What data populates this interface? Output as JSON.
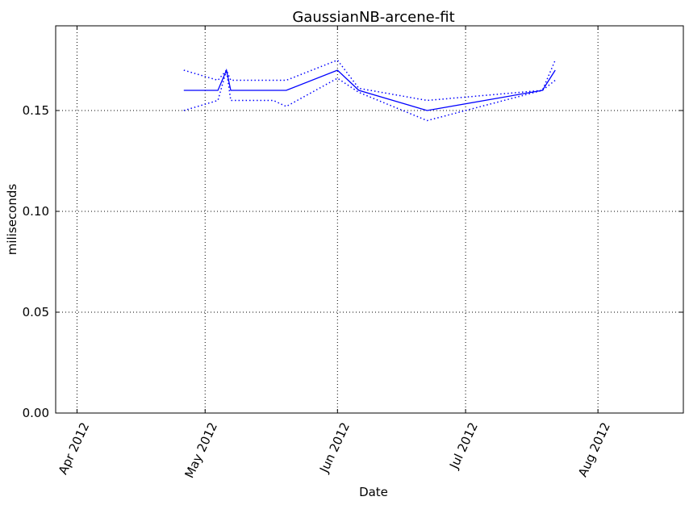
{
  "chart_data": {
    "type": "line",
    "title": "GaussianNB-arcene-fit",
    "xlabel": "Date",
    "ylabel": "miliseconds",
    "x_axis_type": "date",
    "xlim": [
      "2012-03-27",
      "2012-08-21"
    ],
    "ylim": [
      0.0,
      0.192
    ],
    "x_ticks": [
      {
        "date": "2012-04-01",
        "label": "Apr 2012"
      },
      {
        "date": "2012-05-01",
        "label": "May 2012"
      },
      {
        "date": "2012-06-01",
        "label": "Jun 2012"
      },
      {
        "date": "2012-07-01",
        "label": "Jul 2012"
      },
      {
        "date": "2012-08-01",
        "label": "Aug 2012"
      }
    ],
    "y_ticks": [
      {
        "value": 0.0,
        "label": "0.00"
      },
      {
        "value": 0.05,
        "label": "0.05"
      },
      {
        "value": 0.1,
        "label": "0.10"
      },
      {
        "value": 0.15,
        "label": "0.15"
      }
    ],
    "grid": true,
    "line_color": "#0000ff",
    "series": [
      {
        "style": "solid",
        "points": [
          [
            "2012-04-26",
            0.16
          ],
          [
            "2012-05-04",
            0.16
          ],
          [
            "2012-05-06",
            0.17
          ],
          [
            "2012-05-07",
            0.16
          ],
          [
            "2012-05-20",
            0.16
          ],
          [
            "2012-06-01",
            0.17
          ],
          [
            "2012-06-06",
            0.16
          ],
          [
            "2012-06-22",
            0.15
          ],
          [
            "2012-07-19",
            0.16
          ],
          [
            "2012-07-22",
            0.17
          ]
        ]
      },
      {
        "style": "dotted",
        "points": [
          [
            "2012-04-26",
            0.17
          ],
          [
            "2012-05-04",
            0.165
          ],
          [
            "2012-05-06",
            0.17
          ],
          [
            "2012-05-07",
            0.165
          ],
          [
            "2012-05-20",
            0.165
          ],
          [
            "2012-06-01",
            0.175
          ],
          [
            "2012-06-06",
            0.161
          ],
          [
            "2012-06-22",
            0.155
          ],
          [
            "2012-07-19",
            0.16
          ],
          [
            "2012-07-22",
            0.175
          ]
        ]
      },
      {
        "style": "dotted",
        "points": [
          [
            "2012-04-26",
            0.15
          ],
          [
            "2012-05-04",
            0.155
          ],
          [
            "2012-05-06",
            0.17
          ],
          [
            "2012-05-07",
            0.155
          ],
          [
            "2012-05-17",
            0.155
          ],
          [
            "2012-05-20",
            0.152
          ],
          [
            "2012-06-01",
            0.166
          ],
          [
            "2012-06-06",
            0.159
          ],
          [
            "2012-06-22",
            0.145
          ],
          [
            "2012-07-19",
            0.16
          ],
          [
            "2012-07-22",
            0.165
          ]
        ]
      }
    ]
  }
}
